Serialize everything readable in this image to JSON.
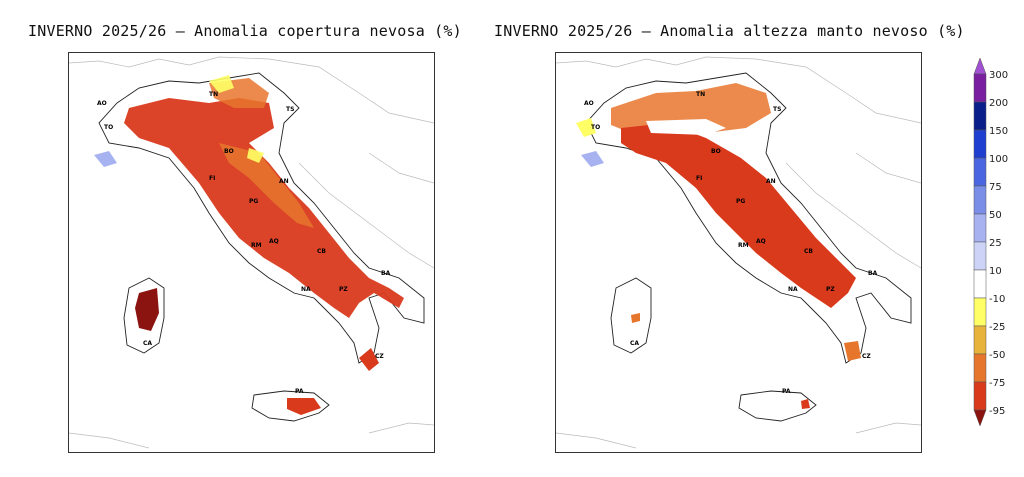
{
  "panels": [
    {
      "title": "INVERNO 2025/26 – Anomalia copertura nevosa (%)",
      "cities": [
        "AO",
        "TO",
        "TN",
        "TS",
        "BO",
        "FI",
        "AN",
        "PG",
        "AQ",
        "CB",
        "NA",
        "BA",
        "PZ",
        "CZ",
        "PA",
        "CA",
        "RM"
      ]
    },
    {
      "title": "INVERNO 2025/26 – Anomalia altezza manto nevoso (%)",
      "cities": [
        "AO",
        "TO",
        "TN",
        "TS",
        "BO",
        "FI",
        "AN",
        "PG",
        "AQ",
        "CB",
        "NA",
        "BA",
        "PZ",
        "CZ",
        "PA",
        "CA",
        "RM"
      ]
    }
  ],
  "legend": {
    "levels": [
      "300",
      "200",
      "150",
      "100",
      "75",
      "50",
      "25",
      "10",
      "-10",
      "-25",
      "-50",
      "-75",
      "-95"
    ],
    "colors": {
      "above_300": "#a050d0",
      "200_300": "#7a1fa0",
      "150_200": "#0b1f8a",
      "100_150": "#1f3fd0",
      "75_100": "#4a66e0",
      "50_75": "#7a8ee8",
      "25_50": "#a7b2f0",
      "10_25": "#cdd3f7",
      "neutral": "#ffffff",
      "m10_m25": "#ffff66",
      "m25_m50": "#e8b33a",
      "m50_m75": "#e7762d",
      "m75_m95": "#d93a1c",
      "below_m95": "#8b1410"
    }
  }
}
